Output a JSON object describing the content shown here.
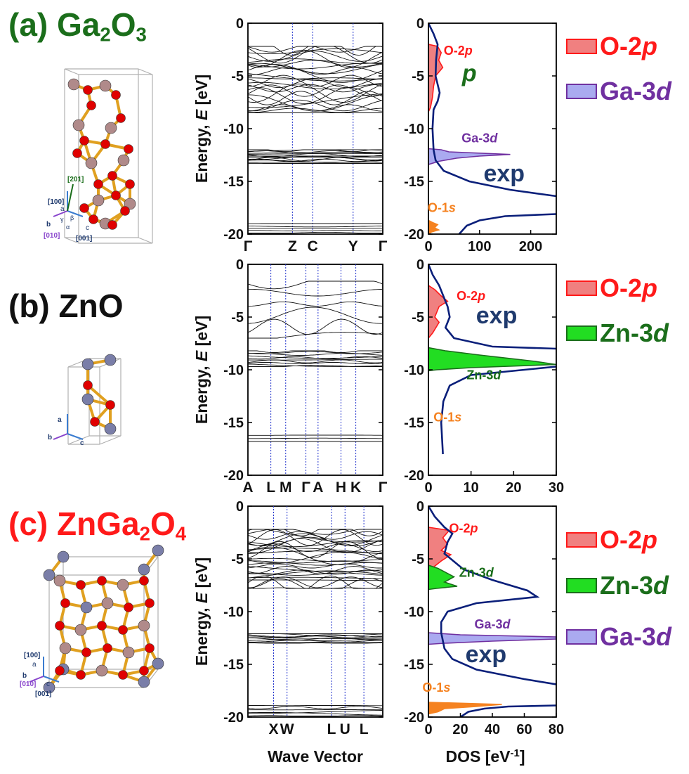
{
  "colors": {
    "green": "#1b6e1b",
    "red": "#ff1a1a",
    "black": "#111111",
    "purple": "#7030a0",
    "navy": "#1f3a6e",
    "orange": "#f58220",
    "o2p_fill": "#f08080",
    "ga3d_fill": "#aaaaf0",
    "zn3d_fill": "#22dd22",
    "exp_line": "#0a1f7a"
  },
  "panels": [
    {
      "id": "a",
      "prefix": "(a)",
      "title_main": "Ga",
      "title_sub1": "2",
      "title_mid": "O",
      "title_sub2": "3",
      "axis_labels": [
        "[201]",
        "[100]",
        "a",
        "b",
        "[010]",
        "c",
        "[001]",
        "α",
        "β",
        "γ"
      ],
      "legend": [
        {
          "name": "O-2",
          "italic": "p",
          "color": "red",
          "fill": "o2p_fill"
        },
        {
          "name": "Ga-3",
          "italic": "d",
          "color": "purple",
          "fill": "ga3d_fill"
        }
      ]
    },
    {
      "id": "b",
      "prefix": "(b)",
      "title_main": "ZnO",
      "axis_labels": [
        "a",
        "b",
        "c"
      ],
      "legend": [
        {
          "name": "O-2",
          "italic": "p",
          "color": "red",
          "fill": "o2p_fill"
        },
        {
          "name": "Zn-3",
          "italic": "d",
          "color": "green",
          "fill": "zn3d_fill"
        }
      ]
    },
    {
      "id": "c",
      "prefix": "(c)",
      "title_main": "ZnGa",
      "title_sub1": "2",
      "title_mid": "O",
      "title_sub2": "4",
      "axis_labels": [
        "[100]",
        "a",
        "b",
        "[010]",
        "c",
        "[001]"
      ],
      "legend": [
        {
          "name": "O-2",
          "italic": "p",
          "color": "red",
          "fill": "o2p_fill"
        },
        {
          "name": "Zn-3",
          "italic": "d",
          "color": "green",
          "fill": "zn3d_fill"
        },
        {
          "name": "Ga-3",
          "italic": "d",
          "color": "purple",
          "fill": "ga3d_fill"
        }
      ]
    }
  ],
  "chart_data": [
    {
      "type": "line",
      "panel": "a-bands",
      "ylabel_prefix": "Energy, ",
      "ylabel_italic": "E",
      "ylabel_unit": " [eV]",
      "ylim": [
        -20,
        0
      ],
      "yticks": [
        0,
        -5,
        -10,
        -15,
        -20
      ],
      "kpoints": [
        {
          "label": "Γ",
          "x": 0.0
        },
        {
          "label": "Z",
          "x": 0.33
        },
        {
          "label": "C",
          "x": 0.48
        },
        {
          "label": "Y",
          "x": 0.78
        },
        {
          "label": "Γ",
          "x": 1.0
        }
      ],
      "band_groups": [
        {
          "min": -8.5,
          "max": -2.2,
          "count": 28
        },
        {
          "min": -13.3,
          "max": -12.0,
          "count": 14
        },
        {
          "min": -19.9,
          "max": -19.0,
          "count": 5
        }
      ]
    },
    {
      "type": "area",
      "panel": "a-dos",
      "xlabel": "",
      "xlim": [
        0,
        250
      ],
      "xticks": [
        0,
        100,
        200
      ],
      "ylim": [
        -20,
        0
      ],
      "yticks": [
        0,
        -5,
        -10,
        -15,
        -20
      ],
      "series": [
        {
          "name": "O-2p",
          "color": "o2p_fill",
          "stroke": "red",
          "points": [
            [
              0,
              -2
            ],
            [
              18,
              -2.2
            ],
            [
              25,
              -2.8
            ],
            [
              20,
              -3.5
            ],
            [
              28,
              -4.2
            ],
            [
              14,
              -5
            ],
            [
              10,
              -6
            ],
            [
              8,
              -7
            ],
            [
              4,
              -8
            ],
            [
              0,
              -8.4
            ]
          ]
        },
        {
          "name": "Ga-3d",
          "color": "ga3d_fill",
          "stroke": "purple",
          "points": [
            [
              0,
              -11.9
            ],
            [
              25,
              -12.0
            ],
            [
              40,
              -12.2
            ],
            [
              160,
              -12.45
            ],
            [
              100,
              -12.6
            ],
            [
              55,
              -12.8
            ],
            [
              20,
              -13.1
            ],
            [
              0,
              -13.4
            ]
          ]
        },
        {
          "name": "O-1s",
          "color": "orange",
          "stroke": "orange",
          "points": [
            [
              0,
              -18.7
            ],
            [
              8,
              -18.9
            ],
            [
              18,
              -19.1
            ],
            [
              12,
              -19.4
            ],
            [
              20,
              -19.6
            ],
            [
              6,
              -19.8
            ],
            [
              0,
              -20
            ]
          ]
        },
        {
          "name": "exp",
          "color": "exp_line",
          "stroke": "exp_line",
          "line": true,
          "points": [
            [
              0,
              0
            ],
            [
              10,
              -1
            ],
            [
              18,
              -2
            ],
            [
              15,
              -3.5
            ],
            [
              14,
              -5
            ],
            [
              22,
              -6.6
            ],
            [
              18,
              -7.4
            ],
            [
              10,
              -8.2
            ],
            [
              8,
              -10
            ],
            [
              10,
              -12
            ],
            [
              14,
              -13
            ],
            [
              30,
              -14
            ],
            [
              80,
              -15
            ],
            [
              160,
              -15.8
            ],
            [
              250,
              -16.4
            ]
          ]
        },
        {
          "name": "exp-tail",
          "color": "exp_line",
          "stroke": "exp_line",
          "line": true,
          "points": [
            [
              250,
              -18.1
            ],
            [
              150,
              -18.3
            ],
            [
              100,
              -18.7
            ],
            [
              75,
              -19.2
            ],
            [
              60,
              -20
            ]
          ]
        }
      ],
      "annotations": [
        {
          "text": "O-2",
          "italic": "p",
          "x": 58,
          "y": -3.0,
          "color": "red"
        },
        {
          "text": "p",
          "x": 80,
          "y": -5.5,
          "color": "green"
        },
        {
          "text": "Ga-3",
          "italic": "d",
          "x": 100,
          "y": -11.3,
          "color": "purple"
        },
        {
          "text": "exp",
          "x": 148,
          "y": -15,
          "color": "navy"
        },
        {
          "text": "O-1",
          "italic": "s",
          "x": 26,
          "y": -17.9,
          "color": "orange"
        }
      ]
    },
    {
      "type": "line",
      "panel": "b-bands",
      "ylabel_prefix": "Energy, ",
      "ylabel_italic": "E",
      "ylabel_unit": " [eV]",
      "ylim": [
        -20,
        0
      ],
      "yticks": [
        0,
        -5,
        -10,
        -15,
        -20
      ],
      "kpoints": [
        {
          "label": "A",
          "x": 0.0
        },
        {
          "label": "L",
          "x": 0.17
        },
        {
          "label": "M",
          "x": 0.28
        },
        {
          "label": "Γ",
          "x": 0.43
        },
        {
          "label": "A",
          "x": 0.52
        },
        {
          "label": "H",
          "x": 0.69
        },
        {
          "label": "K",
          "x": 0.8
        },
        {
          "label": "Γ",
          "x": 1.0
        }
      ],
      "band_groups": [
        {
          "min": -7.0,
          "max": -1.6,
          "count": 6
        },
        {
          "min": -9.7,
          "max": -8.2,
          "count": 10
        },
        {
          "min": -16.8,
          "max": -16.2,
          "count": 3
        }
      ]
    },
    {
      "type": "area",
      "panel": "b-dos",
      "xlabel": "",
      "xlim": [
        0,
        30
      ],
      "xticks": [
        0,
        10,
        20,
        30
      ],
      "ylim": [
        -20,
        0
      ],
      "yticks": [
        0,
        -5,
        -10,
        -15,
        -20
      ],
      "series": [
        {
          "name": "O-2p",
          "color": "o2p_fill",
          "stroke": "red",
          "points": [
            [
              0,
              -2
            ],
            [
              1.5,
              -2.4
            ],
            [
              3,
              -3
            ],
            [
              4.5,
              -3.5
            ],
            [
              2.5,
              -4
            ],
            [
              1.5,
              -5
            ],
            [
              2.5,
              -5.5
            ],
            [
              1,
              -6.5
            ],
            [
              0,
              -7
            ]
          ]
        },
        {
          "name": "Zn-3d",
          "color": "zn3d_fill",
          "stroke": "green",
          "points": [
            [
              0,
              -7.9
            ],
            [
              4,
              -8.2
            ],
            [
              12,
              -8.6
            ],
            [
              25,
              -9.2
            ],
            [
              30,
              -9.5
            ],
            [
              10,
              -9.8
            ],
            [
              2,
              -10
            ],
            [
              0,
              -10.1
            ]
          ]
        },
        {
          "name": "exp",
          "color": "exp_line",
          "stroke": "exp_line",
          "line": true,
          "points": [
            [
              0,
              0
            ],
            [
              1,
              -1
            ],
            [
              2.5,
              -2
            ],
            [
              3.5,
              -3
            ],
            [
              4.5,
              -4
            ],
            [
              5,
              -5
            ],
            [
              4,
              -6
            ],
            [
              6,
              -7
            ],
            [
              15,
              -7.8
            ],
            [
              30,
              -8.0
            ]
          ]
        },
        {
          "name": "exp-tail",
          "color": "exp_line",
          "stroke": "exp_line",
          "line": true,
          "points": [
            [
              30,
              -9.7
            ],
            [
              10,
              -10.5
            ],
            [
              5,
              -11.5
            ],
            [
              3.5,
              -13
            ],
            [
              3,
              -15
            ],
            [
              3.4,
              -18
            ]
          ]
        }
      ],
      "annotations": [
        {
          "text": "O-2",
          "italic": "p",
          "x": 10,
          "y": -3.4,
          "color": "red"
        },
        {
          "text": "exp",
          "x": 16,
          "y": -5.6,
          "color": "navy"
        },
        {
          "text": "Zn-3",
          "italic": "d",
          "x": 13,
          "y": -10.9,
          "color": "green"
        },
        {
          "text": "O-1",
          "italic": "s",
          "x": 4.5,
          "y": -14.9,
          "color": "orange"
        }
      ]
    },
    {
      "type": "line",
      "panel": "c-bands",
      "ylabel_prefix": "Energy, ",
      "ylabel_italic": "E",
      "ylabel_unit": " [eV]",
      "xlabel": "Wave Vector",
      "ylim": [
        -20,
        0
      ],
      "yticks": [
        0,
        -5,
        -10,
        -15,
        -20
      ],
      "kpoints": [
        {
          "label": "X",
          "x": 0.19
        },
        {
          "label": "W",
          "x": 0.29
        },
        {
          "label": "L",
          "x": 0.62
        },
        {
          "label": "U",
          "x": 0.72
        },
        {
          "label": "L",
          "x": 0.86
        }
      ],
      "band_groups": [
        {
          "min": -7.8,
          "max": -2.2,
          "count": 30
        },
        {
          "min": -13.0,
          "max": -12.1,
          "count": 10
        },
        {
          "min": -19.9,
          "max": -18.9,
          "count": 6
        }
      ]
    },
    {
      "type": "area",
      "panel": "c-dos",
      "xlabel": "DOS [eV",
      "xlabel_sup": "-1",
      "xlabel_end": "]",
      "xlim": [
        0,
        80
      ],
      "xticks": [
        0,
        20,
        40,
        60,
        80
      ],
      "ylim": [
        -20,
        0
      ],
      "yticks": [
        0,
        -5,
        -10,
        -15,
        -20
      ],
      "series": [
        {
          "name": "O-2p",
          "color": "o2p_fill",
          "stroke": "red",
          "points": [
            [
              0,
              -2
            ],
            [
              13,
              -2.3
            ],
            [
              9,
              -3
            ],
            [
              12,
              -3.6
            ],
            [
              8,
              -4.2
            ],
            [
              14,
              -4.6
            ],
            [
              8,
              -5.2
            ],
            [
              3,
              -5.8
            ],
            [
              0,
              -6
            ]
          ]
        },
        {
          "name": "Zn-3d",
          "color": "zn3d_fill",
          "stroke": "green",
          "points": [
            [
              0,
              -5.6
            ],
            [
              6,
              -5.9
            ],
            [
              16,
              -6.7
            ],
            [
              10,
              -7.2
            ],
            [
              18,
              -7.6
            ],
            [
              5,
              -7.8
            ],
            [
              0,
              -7.9
            ]
          ]
        },
        {
          "name": "Ga-3d",
          "color": "ga3d_fill",
          "stroke": "purple",
          "points": [
            [
              0,
              -12.0
            ],
            [
              20,
              -12.2
            ],
            [
              80,
              -12.4
            ],
            [
              80,
              -12.6
            ],
            [
              40,
              -12.8
            ],
            [
              10,
              -13.0
            ],
            [
              0,
              -13.1
            ]
          ]
        },
        {
          "name": "O-1s",
          "color": "orange",
          "stroke": "orange",
          "points": [
            [
              0,
              -18.6
            ],
            [
              46,
              -18.8
            ],
            [
              30,
              -19.0
            ],
            [
              10,
              -19.2
            ],
            [
              6,
              -19.5
            ],
            [
              0,
              -19.7
            ]
          ]
        },
        {
          "name": "exp",
          "color": "exp_line",
          "stroke": "exp_line",
          "line": true,
          "points": [
            [
              0,
              0
            ],
            [
              4,
              -1
            ],
            [
              10,
              -2
            ],
            [
              15,
              -2.6
            ],
            [
              12,
              -3.4
            ],
            [
              10,
              -4.5
            ],
            [
              14,
              -5
            ],
            [
              22,
              -6
            ],
            [
              40,
              -7
            ],
            [
              62,
              -8
            ],
            [
              68,
              -8.6
            ],
            [
              30,
              -9.2
            ],
            [
              12,
              -10
            ],
            [
              8,
              -11
            ],
            [
              8,
              -12
            ],
            [
              10,
              -13.5
            ],
            [
              15,
              -14.5
            ],
            [
              30,
              -15.5
            ],
            [
              60,
              -16.4
            ],
            [
              80,
              -16.9
            ]
          ]
        },
        {
          "name": "exp-tail",
          "color": "exp_line",
          "stroke": "exp_line",
          "line": true,
          "points": [
            [
              80,
              -18.9
            ],
            [
              50,
              -19
            ],
            [
              35,
              -19.2
            ],
            [
              25,
              -19.5
            ],
            [
              20,
              -20
            ]
          ]
        }
      ],
      "annotations": [
        {
          "text": "O-2",
          "italic": "p",
          "x": 22,
          "y": -2.5,
          "color": "red"
        },
        {
          "text": "Zn-3",
          "italic": "d",
          "x": 30,
          "y": -6.7,
          "color": "green"
        },
        {
          "text": "Ga-3",
          "italic": "d",
          "x": 40,
          "y": -11.6,
          "color": "purple"
        },
        {
          "text": "exp",
          "x": 36,
          "y": -14.8,
          "color": "navy"
        },
        {
          "text": "O-1",
          "italic": "s",
          "x": 5,
          "y": -17.6,
          "color": "orange"
        }
      ]
    }
  ]
}
